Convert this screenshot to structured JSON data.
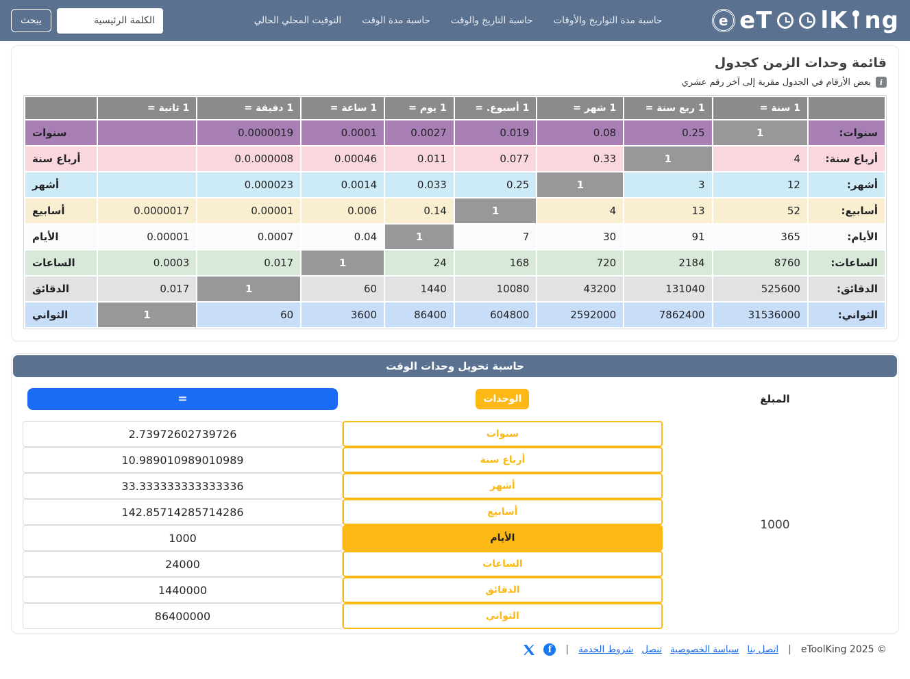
{
  "header": {
    "search_button": "يبحث",
    "search_placeholder": "الكلمة الرئيسية",
    "nav": [
      "حاسبة مدة التواريخ والأوقات",
      "حاسبة التاريخ والوقت",
      "حاسبة مدة الوقت",
      "التوقيت المحلي الحالي"
    ],
    "logo": {
      "badge_letter": "e",
      "part1": "eT",
      "part2": "lK",
      "part3": "ng",
      "full_name": "eToolKing"
    }
  },
  "table_section": {
    "title": "قائمة وحدات الزمن كجدول",
    "note": "بعض الأرقام في الجدول مقربة إلى آخر رقم عشري",
    "note_icon": "info-icon",
    "columns": [
      "1 سنة =",
      "1 ربع سنة =",
      "1 شهر =",
      "1 أسبوع. =",
      "1 يوم =",
      "1 ساعة =",
      "1 دقيقة =",
      "1 ثانية ="
    ],
    "rows": [
      {
        "label": "سنوات:",
        "label_left": "سنوات",
        "color": "#a87fb5",
        "values": [
          "1",
          "0.25",
          "0.08",
          "0.019",
          "0.0027",
          "0.0001",
          "0.0000019",
          ""
        ]
      },
      {
        "label": "أرباع سنة:",
        "label_left": "أرباع سنة",
        "color": "#f9d7dd",
        "values": [
          "4",
          "1",
          "0.33",
          "0.077",
          "0.011",
          "0.00046",
          "0.0.000008",
          ""
        ]
      },
      {
        "label": "أشهر:",
        "label_left": "أشهر",
        "color": "#cdebf6",
        "values": [
          "12",
          "3",
          "1",
          "0.25",
          "0.033",
          "0.0014",
          "0.000023",
          ""
        ]
      },
      {
        "label": "أسابيع:",
        "label_left": "أسابيع",
        "color": "#f9efd0",
        "values": [
          "52",
          "13",
          "4",
          "1",
          "0.14",
          "0.006",
          "0.00001",
          "0.0000017"
        ]
      },
      {
        "label": "الأيام:",
        "label_left": "الأيام",
        "color": "#fbfbfb",
        "values": [
          "365",
          "91",
          "30",
          "7",
          "1",
          "0.04",
          "0.0007",
          "0.00001"
        ]
      },
      {
        "label": "الساعات:",
        "label_left": "الساعات",
        "color": "#d8e8d9",
        "values": [
          "8760",
          "2184",
          "720",
          "168",
          "24",
          "1",
          "0.017",
          "0.0003"
        ]
      },
      {
        "label": "الدقائق:",
        "label_left": "الدقائق",
        "color": "#e2e2e3",
        "values": [
          "525600",
          "131040",
          "43200",
          "10080",
          "1440",
          "60",
          "1",
          "0.017"
        ]
      },
      {
        "label": "الثواني:",
        "label_left": "الثواني",
        "color": "#c8ddf8",
        "values": [
          "31536000",
          "7862400",
          "2592000",
          "604800",
          "86400",
          "3600",
          "60",
          "1"
        ]
      }
    ],
    "diagonal_color": "#98989b",
    "header_color": "#8b8b8e"
  },
  "calculator": {
    "title": "حاسبة تحويل وحدات الوقت",
    "amount_header": "المبلغ",
    "units_header": "الوحدات",
    "equals_label": "=",
    "amount_value": "1000",
    "accent_yellow": "#fcb814",
    "accent_blue": "#1b6cf2",
    "rows": [
      {
        "unit": "سنوات",
        "result": "2.73972602739726",
        "selected": false
      },
      {
        "unit": "أرباع سنة",
        "result": "10.989010989010989",
        "selected": false
      },
      {
        "unit": "أشهر",
        "result": "33.333333333333336",
        "selected": false
      },
      {
        "unit": "أسابيع",
        "result": "142.85714285714286",
        "selected": false
      },
      {
        "unit": "الأيام",
        "result": "1000",
        "selected": true
      },
      {
        "unit": "الساعات",
        "result": "24000",
        "selected": false
      },
      {
        "unit": "الدقائق",
        "result": "1440000",
        "selected": false
      },
      {
        "unit": "الثواني",
        "result": "86400000",
        "selected": false
      }
    ]
  },
  "footer": {
    "copyright": "© eToolKing 2025",
    "separator": "|",
    "links": [
      "اتصل بنا",
      "سياسة الخصوصية",
      "تنصل",
      "شروط الخدمة"
    ],
    "icons": [
      "facebook-icon",
      "x-icon"
    ],
    "icon_color": "#1877f2"
  }
}
